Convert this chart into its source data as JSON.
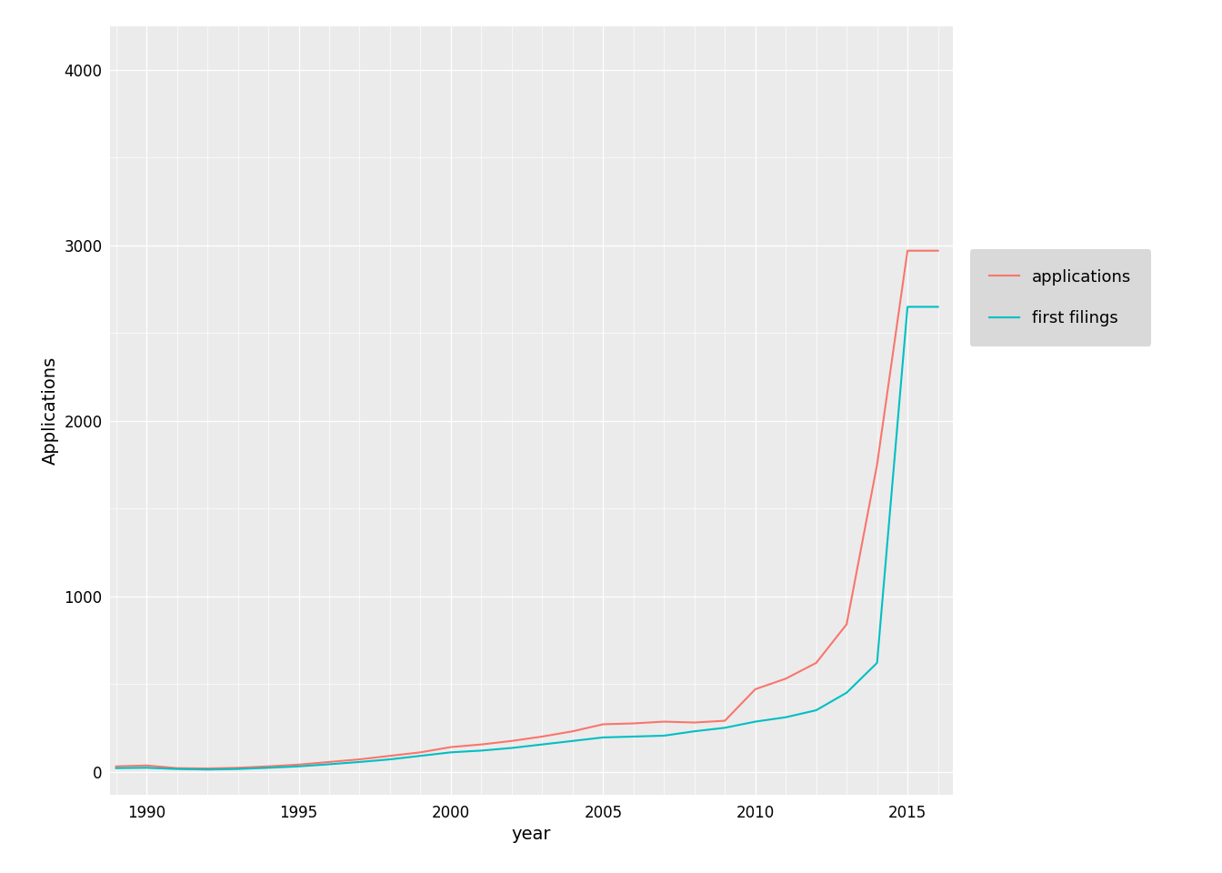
{
  "years": [
    1989,
    1990,
    1991,
    1992,
    1993,
    1994,
    1995,
    1996,
    1997,
    1998,
    1999,
    2000,
    2001,
    2002,
    2003,
    2004,
    2005,
    2006,
    2007,
    2008,
    2009,
    2010,
    2011,
    2012,
    2013,
    2014,
    2015,
    2016
  ],
  "applications": [
    30,
    35,
    20,
    18,
    22,
    30,
    40,
    55,
    70,
    90,
    110,
    140,
    155,
    175,
    200,
    230,
    270,
    275,
    285,
    280,
    290,
    470,
    530,
    620,
    840,
    1750,
    2970,
    2970
  ],
  "first_filings": [
    20,
    22,
    15,
    12,
    15,
    22,
    30,
    42,
    55,
    70,
    90,
    110,
    120,
    135,
    155,
    175,
    195,
    200,
    205,
    230,
    250,
    285,
    310,
    350,
    450,
    620,
    2650,
    2650
  ],
  "applications_color": "#F8766D",
  "first_filings_color": "#00BFC4",
  "background_color": "#FFFFFF",
  "panel_background": "#EBEBEB",
  "grid_major_color": "#FFFFFF",
  "grid_minor_color": "#FFFFFF",
  "ylabel": "Applications",
  "xlabel": "year",
  "ylim": [
    -130,
    4250
  ],
  "xlim": [
    1988.8,
    2016.5
  ],
  "yticks": [
    0,
    1000,
    2000,
    3000,
    4000
  ],
  "xticks": [
    1990,
    1995,
    2000,
    2005,
    2010,
    2015
  ],
  "legend_labels": [
    "applications",
    "first filings"
  ],
  "legend_bg": "#D9D9D9",
  "axis_label_fontsize": 14,
  "tick_fontsize": 12,
  "legend_fontsize": 13,
  "line_width": 1.5
}
